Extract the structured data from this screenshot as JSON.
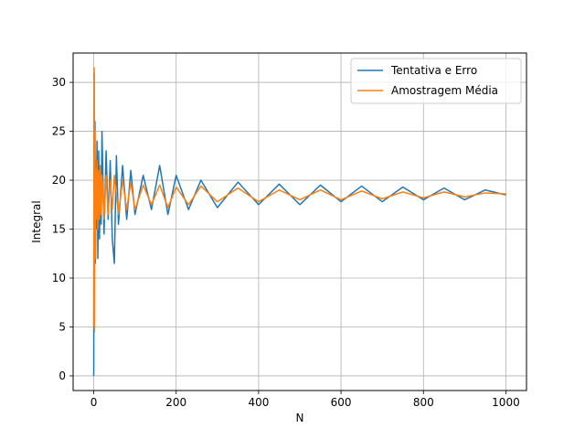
{
  "chart_data": {
    "type": "line",
    "xlabel": "N",
    "ylabel": "Integral",
    "xlim": [
      -50,
      1050
    ],
    "ylim": [
      -1.5,
      33
    ],
    "xticks": [
      0,
      200,
      400,
      600,
      800,
      1000
    ],
    "yticks": [
      0,
      5,
      10,
      15,
      20,
      25,
      30
    ],
    "grid": true,
    "legend_position": "top-right",
    "series": [
      {
        "name": "Tentativa e Erro",
        "color": "#1f77b4",
        "x": [
          0,
          1,
          2,
          3,
          4,
          5,
          6,
          8,
          10,
          12,
          14,
          16,
          18,
          20,
          25,
          30,
          35,
          40,
          45,
          50,
          55,
          60,
          70,
          80,
          90,
          100,
          120,
          140,
          160,
          180,
          200,
          230,
          260,
          300,
          350,
          400,
          450,
          500,
          550,
          600,
          650,
          700,
          750,
          800,
          850,
          900,
          950,
          1000
        ],
        "values": [
          0,
          31,
          13,
          26,
          11.5,
          22,
          15,
          24,
          12,
          23,
          14,
          21.5,
          15.5,
          25,
          14.5,
          23,
          16,
          22,
          14,
          11.5,
          22.5,
          15.5,
          21.5,
          16,
          21,
          16.5,
          20.5,
          17,
          21.5,
          16.5,
          20.5,
          17,
          20,
          17.2,
          19.8,
          17.5,
          19.6,
          17.5,
          19.5,
          17.8,
          19.4,
          17.8,
          19.3,
          18,
          19.2,
          18,
          19,
          18.5
        ]
      },
      {
        "name": "Amostragem Média",
        "color": "#ff7f0e",
        "x": [
          0,
          1,
          2,
          3,
          4,
          5,
          6,
          8,
          10,
          12,
          14,
          16,
          18,
          20,
          25,
          30,
          35,
          40,
          45,
          50,
          60,
          70,
          80,
          90,
          100,
          120,
          140,
          160,
          180,
          200,
          230,
          260,
          300,
          350,
          400,
          450,
          500,
          550,
          600,
          650,
          700,
          750,
          800,
          850,
          900,
          950,
          1000
        ],
        "values": [
          5,
          31.5,
          4.5,
          25,
          12,
          21,
          16,
          22,
          15,
          21,
          16,
          21.5,
          16.5,
          20.5,
          16,
          20.5,
          16.5,
          20,
          17,
          20.5,
          16.5,
          20,
          17,
          19.8,
          17,
          19.5,
          17.5,
          19.5,
          17.2,
          19.3,
          17.5,
          19.4,
          17.8,
          19.2,
          17.8,
          19,
          18,
          19,
          18,
          18.9,
          18.1,
          18.8,
          18.2,
          18.8,
          18.3,
          18.7,
          18.6
        ]
      }
    ]
  }
}
